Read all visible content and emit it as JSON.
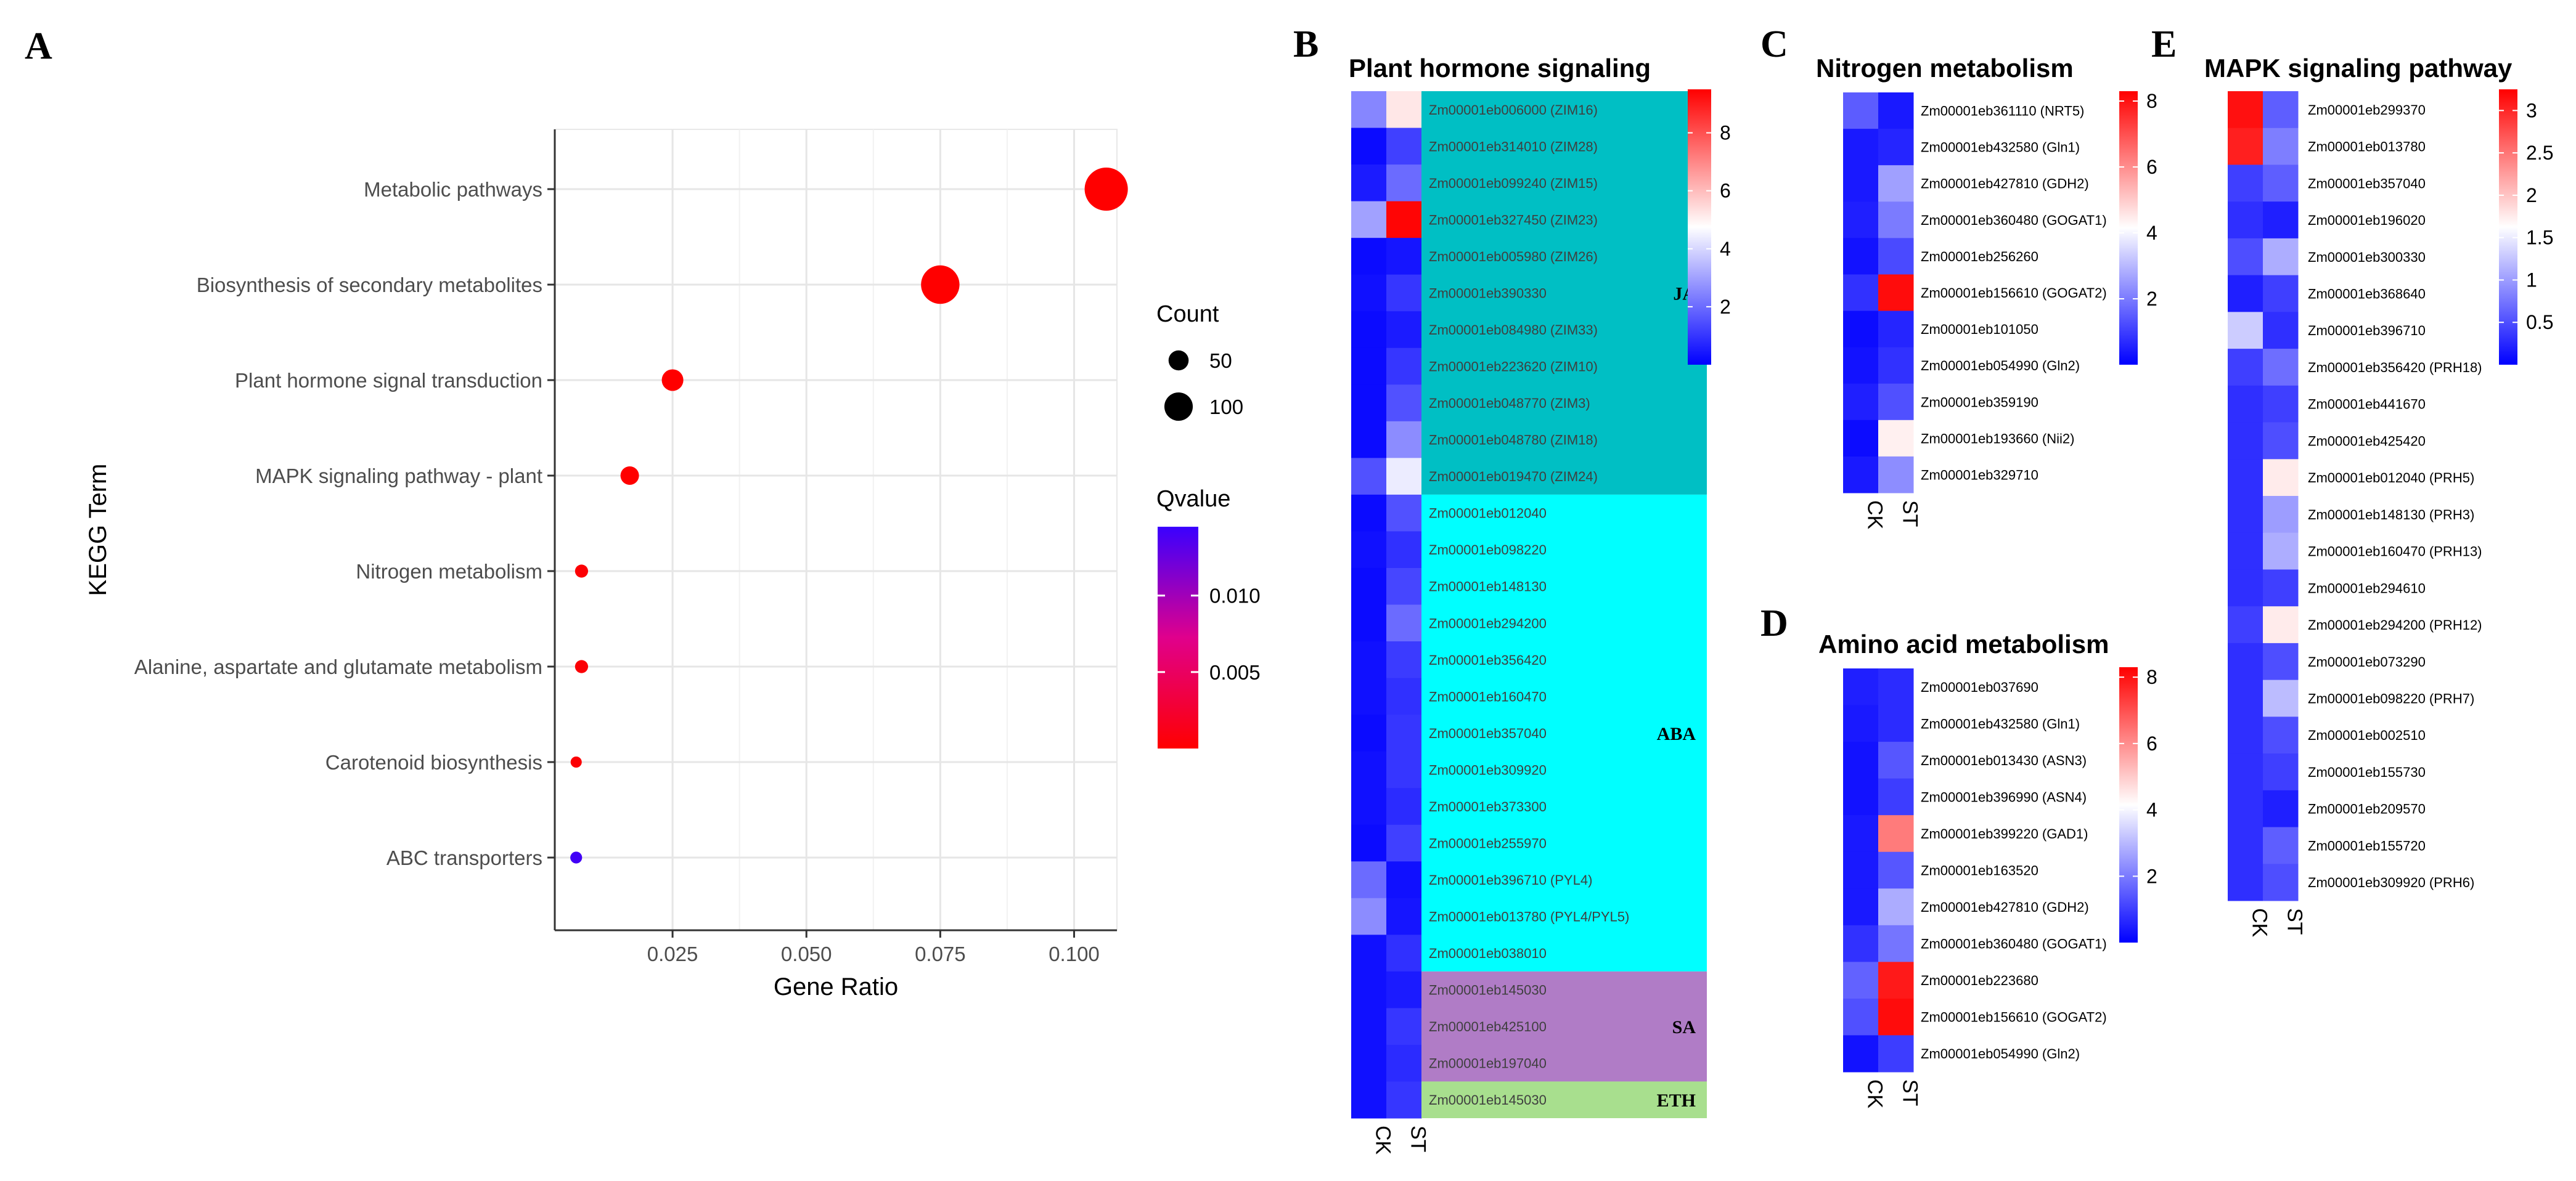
{
  "panels": {
    "A": {
      "letter": "A",
      "chart_data": {
        "type": "scatter",
        "xlabel": "Gene Ratio",
        "ylabel": "KEGG Term",
        "x_ticks": [
          "0.025",
          "0.050",
          "0.075",
          "0.100"
        ],
        "x_tick_values": [
          0.025,
          0.05,
          0.075,
          0.1
        ],
        "xlim": [
          0.003,
          0.108
        ],
        "grid": true,
        "points": [
          {
            "term": "Metabolic pathways",
            "gene_ratio": 0.106,
            "count": 120,
            "qvalue": 0.0
          },
          {
            "term": "Biosynthesis of secondary metabolites",
            "gene_ratio": 0.075,
            "count": 95,
            "qvalue": 0.0
          },
          {
            "term": "Plant hormone signal transduction",
            "gene_ratio": 0.025,
            "count": 30,
            "qvalue": 0.0
          },
          {
            "term": "MAPK signaling pathway - plant",
            "gene_ratio": 0.017,
            "count": 22,
            "qvalue": 0.0
          },
          {
            "term": "Nitrogen metabolism",
            "gene_ratio": 0.008,
            "count": 11,
            "qvalue": 0.0002
          },
          {
            "term": "Alanine, aspartate and glutamate metabolism",
            "gene_ratio": 0.008,
            "count": 11,
            "qvalue": 0.0003
          },
          {
            "term": "Carotenoid biosynthesis",
            "gene_ratio": 0.007,
            "count": 8,
            "qvalue": 0.0002
          },
          {
            "term": "ABC transporters",
            "gene_ratio": 0.007,
            "count": 9,
            "qvalue": 0.014
          }
        ],
        "size_legend": {
          "title": "Count",
          "items": [
            {
              "label": "50",
              "value": 50
            },
            {
              "label": "100",
              "value": 100
            }
          ]
        },
        "color_legend": {
          "title": "Qvalue",
          "ticks": [
            "0.010",
            "0.005"
          ],
          "tick_values": [
            0.01,
            0.005
          ],
          "range": [
            0.0,
            0.0145
          ],
          "low_color": "#ff0000",
          "high_color": "#0000ff"
        }
      }
    },
    "B": {
      "letter": "B",
      "chart_data": {
        "type": "heatmap",
        "title": "Plant hormone signaling",
        "columns": [
          "CK",
          "ST"
        ],
        "colorbar": {
          "ticks": [
            "8",
            "6",
            "4",
            "2"
          ],
          "tick_values": [
            8,
            6,
            4,
            2
          ],
          "range": [
            0,
            9.5
          ]
        },
        "rows": [
          {
            "label": "Zm00001eb006000 (ZIM16)",
            "values": [
              2.5,
              5.2
            ],
            "group": 0
          },
          {
            "label": "Zm00001eb314010 (ZIM28)",
            "values": [
              0.2,
              1.2
            ],
            "group": 0
          },
          {
            "label": "Zm00001eb099240 (ZIM15)",
            "values": [
              0.5,
              2.0
            ],
            "group": 0
          },
          {
            "label": "Zm00001eb327450 (ZIM23)",
            "values": [
              3.0,
              9.4
            ],
            "group": 0
          },
          {
            "label": "Zm00001eb005980 (ZIM26)",
            "values": [
              0.2,
              0.4
            ],
            "group": 0
          },
          {
            "label": "Zm00001eb390330",
            "values": [
              0.3,
              1.0
            ],
            "group": 0
          },
          {
            "label": "Zm00001eb084980 (ZIM33)",
            "values": [
              0.2,
              0.5
            ],
            "group": 0
          },
          {
            "label": "Zm00001eb223620 (ZIM10)",
            "values": [
              0.2,
              1.0
            ],
            "group": 0
          },
          {
            "label": "Zm00001eb048770 (ZIM3)",
            "values": [
              0.2,
              1.5
            ],
            "group": 0
          },
          {
            "label": "Zm00001eb048780 (ZIM18)",
            "values": [
              0.2,
              2.6
            ],
            "group": 0
          },
          {
            "label": "Zm00001eb019470 (ZIM24)",
            "values": [
              1.5,
              4.4
            ],
            "group": 0
          },
          {
            "label": "Zm00001eb012040",
            "values": [
              0.2,
              1.5
            ],
            "group": 1
          },
          {
            "label": "Zm00001eb098220",
            "values": [
              0.3,
              0.9
            ],
            "group": 1
          },
          {
            "label": "Zm00001eb148130",
            "values": [
              0.2,
              1.3
            ],
            "group": 1
          },
          {
            "label": "Zm00001eb294200",
            "values": [
              0.2,
              2.0
            ],
            "group": 1
          },
          {
            "label": "Zm00001eb356420",
            "values": [
              0.3,
              1.1
            ],
            "group": 1
          },
          {
            "label": "Zm00001eb160470",
            "values": [
              0.3,
              0.9
            ],
            "group": 1
          },
          {
            "label": "Zm00001eb357040",
            "values": [
              0.2,
              1.0
            ],
            "group": 1
          },
          {
            "label": "Zm00001eb309920",
            "values": [
              0.3,
              1.0
            ],
            "group": 1
          },
          {
            "label": "Zm00001eb373300",
            "values": [
              0.3,
              0.8
            ],
            "group": 1
          },
          {
            "label": "Zm00001eb255970",
            "values": [
              0.2,
              1.2
            ],
            "group": 1
          },
          {
            "label": "Zm00001eb396710 (PYL4)",
            "values": [
              2.0,
              0.3
            ],
            "group": 1
          },
          {
            "label": "Zm00001eb013780 (PYL4/PYL5)",
            "values": [
              2.6,
              0.4
            ],
            "group": 1
          },
          {
            "label": "Zm00001eb038010",
            "values": [
              0.3,
              0.9
            ],
            "group": 1
          },
          {
            "label": "Zm00001eb145030",
            "values": [
              0.3,
              0.5
            ],
            "group": 2
          },
          {
            "label": "Zm00001eb425100",
            "values": [
              0.3,
              1.0
            ],
            "group": 2
          },
          {
            "label": "Zm00001eb197040",
            "values": [
              0.3,
              0.8
            ],
            "group": 2
          },
          {
            "label": "Zm00001eb145030",
            "values": [
              0.3,
              1.0
            ],
            "group": 3
          }
        ],
        "groups": [
          {
            "name": "JA",
            "color": "#00bfc4"
          },
          {
            "name": "ABA",
            "color": "#00ffff"
          },
          {
            "name": "SA",
            "color": "#b07cc6"
          },
          {
            "name": "ETH",
            "color": "#a8df8e"
          }
        ]
      }
    },
    "C": {
      "letter": "C",
      "chart_data": {
        "type": "heatmap",
        "title": "Nitrogen metabolism",
        "columns": [
          "CK",
          "ST"
        ],
        "colorbar": {
          "ticks": [
            "8",
            "6",
            "4",
            "2"
          ],
          "tick_values": [
            8,
            6,
            4,
            2
          ],
          "range": [
            0,
            8.3
          ]
        },
        "rows": [
          {
            "label": "Zm00001eb361110 (NRT5)",
            "values": [
              1.5,
              0.4
            ]
          },
          {
            "label": "Zm00001eb432580 (Gln1)",
            "values": [
              0.4,
              0.6
            ]
          },
          {
            "label": "Zm00001eb427810 (GDH2)",
            "values": [
              0.4,
              2.6
            ]
          },
          {
            "label": "Zm00001eb360480 (GOGAT1)",
            "values": [
              0.5,
              2.0
            ]
          },
          {
            "label": "Zm00001eb256260",
            "values": [
              0.3,
              1.2
            ]
          },
          {
            "label": "Zm00001eb156610 (GOGAT2)",
            "values": [
              0.8,
              8.1
            ]
          },
          {
            "label": "Zm00001eb101050",
            "values": [
              0.2,
              0.6
            ]
          },
          {
            "label": "Zm00001eb054990 (Gln2)",
            "values": [
              0.3,
              0.8
            ]
          },
          {
            "label": "Zm00001eb359190",
            "values": [
              0.5,
              1.3
            ]
          },
          {
            "label": "Zm00001eb193660 (Nii2)",
            "values": [
              0.2,
              4.4
            ]
          },
          {
            "label": "Zm00001eb329710",
            "values": [
              0.4,
              2.3
            ]
          }
        ]
      }
    },
    "D": {
      "letter": "D",
      "chart_data": {
        "type": "heatmap",
        "title": "Amino acid metabolism",
        "columns": [
          "CK",
          "ST"
        ],
        "colorbar": {
          "ticks": [
            "8",
            "6",
            "4",
            "2"
          ],
          "tick_values": [
            8,
            6,
            4,
            2
          ],
          "range": [
            0,
            8.3
          ]
        },
        "rows": [
          {
            "label": "Zm00001eb037690",
            "values": [
              0.5,
              0.7
            ]
          },
          {
            "label": "Zm00001eb432580 (Gln1)",
            "values": [
              0.4,
              0.7
            ]
          },
          {
            "label": "Zm00001eb013430 (ASN3)",
            "values": [
              0.3,
              1.4
            ]
          },
          {
            "label": "Zm00001eb396990 (ASN4)",
            "values": [
              0.3,
              1.0
            ]
          },
          {
            "label": "Zm00001eb399220 (GAD1)",
            "values": [
              0.4,
              6.3
            ]
          },
          {
            "label": "Zm00001eb163520",
            "values": [
              0.4,
              1.4
            ]
          },
          {
            "label": "Zm00001eb427810 (GDH2)",
            "values": [
              0.4,
              2.8
            ]
          },
          {
            "label": "Zm00001eb360480 (GOGAT1)",
            "values": [
              0.8,
              1.9
            ]
          },
          {
            "label": "Zm00001eb223680",
            "values": [
              1.6,
              7.9
            ]
          },
          {
            "label": "Zm00001eb156610 (GOGAT2)",
            "values": [
              1.3,
              8.1
            ]
          },
          {
            "label": "Zm00001eb054990 (Gln2)",
            "values": [
              0.3,
              1.0
            ]
          }
        ]
      }
    },
    "E": {
      "letter": "E",
      "chart_data": {
        "type": "heatmap",
        "title": "MAPK signaling pathway",
        "columns": [
          "CK",
          "ST"
        ],
        "colorbar": {
          "ticks": [
            "3",
            "2.5",
            "2",
            "1.5",
            "1",
            "0.5"
          ],
          "tick_values": [
            3,
            2.5,
            2,
            1.5,
            1,
            0.5
          ],
          "range": [
            0,
            3.25
          ]
        },
        "rows": [
          {
            "label": "Zm00001eb299370",
            "values": [
              3.15,
              0.6
            ]
          },
          {
            "label": "Zm00001eb013780",
            "values": [
              3.05,
              0.8
            ]
          },
          {
            "label": "Zm00001eb357040",
            "values": [
              0.4,
              0.6
            ]
          },
          {
            "label": "Zm00001eb196020",
            "values": [
              0.3,
              0.2
            ]
          },
          {
            "label": "Zm00001eb300330",
            "values": [
              0.5,
              1.1
            ]
          },
          {
            "label": "Zm00001eb368640",
            "values": [
              0.2,
              0.4
            ]
          },
          {
            "label": "Zm00001eb396710",
            "values": [
              1.3,
              0.3
            ]
          },
          {
            "label": "Zm00001eb356420 (PRH18)",
            "values": [
              0.4,
              0.7
            ]
          },
          {
            "label": "Zm00001eb441670",
            "values": [
              0.3,
              0.4
            ]
          },
          {
            "label": "Zm00001eb425420",
            "values": [
              0.3,
              0.5
            ]
          },
          {
            "label": "Zm00001eb012040 (PRH5)",
            "values": [
              0.3,
              1.75
            ]
          },
          {
            "label": "Zm00001eb148130 (PRH3)",
            "values": [
              0.3,
              1.0
            ]
          },
          {
            "label": "Zm00001eb160470 (PRH13)",
            "values": [
              0.3,
              1.1
            ]
          },
          {
            "label": "Zm00001eb294610",
            "values": [
              0.3,
              0.4
            ]
          },
          {
            "label": "Zm00001eb294200 (PRH12)",
            "values": [
              0.4,
              1.75
            ]
          },
          {
            "label": "Zm00001eb073290",
            "values": [
              0.3,
              0.5
            ]
          },
          {
            "label": "Zm00001eb098220 (PRH7)",
            "values": [
              0.3,
              1.2
            ]
          },
          {
            "label": "Zm00001eb002510",
            "values": [
              0.3,
              0.5
            ]
          },
          {
            "label": "Zm00001eb155730",
            "values": [
              0.3,
              0.4
            ]
          },
          {
            "label": "Zm00001eb209570",
            "values": [
              0.3,
              0.2
            ]
          },
          {
            "label": "Zm00001eb155720",
            "values": [
              0.3,
              0.6
            ]
          },
          {
            "label": "Zm00001eb309920 (PRH6)",
            "values": [
              0.3,
              0.5
            ]
          }
        ]
      }
    }
  }
}
